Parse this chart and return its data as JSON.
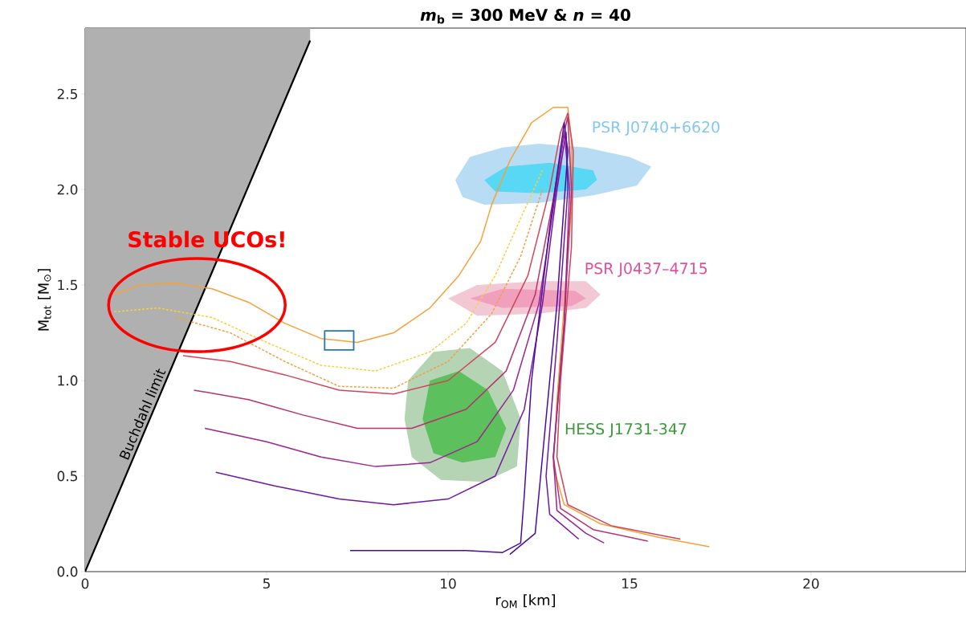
{
  "chart_data": {
    "type": "line",
    "title": "*m*$_{b}$ = 300 MeV & *n* = 40",
    "xlabel": "r$_{OM}$ [km]",
    "ylabel": "M$_{tot}$ [M$_{⊙}$]",
    "xlim": [
      0,
      24.27
    ],
    "ylim": [
      0,
      2.845
    ],
    "xticks": [
      0,
      5,
      10,
      15,
      20
    ],
    "yticks": [
      {
        "value": 0,
        "label": "0.0"
      },
      {
        "value": 0.5,
        "label": "0.5"
      },
      {
        "value": 1,
        "label": "1.0"
      },
      {
        "value": 1.5,
        "label": "1.5"
      },
      {
        "value": 2,
        "label": "2.0"
      },
      {
        "value": 2.5,
        "label": "2.5"
      }
    ],
    "series": [
      {
        "type": "area",
        "color": "#b8dcf4",
        "x": [
          10.2,
          10.6,
          11.5,
          12.5,
          13.8,
          15.0,
          15.6,
          15.2,
          14.0,
          12.5,
          11.0,
          10.4
        ],
        "values": [
          2.05,
          2.17,
          2.22,
          2.24,
          2.22,
          2.17,
          2.12,
          2.02,
          1.97,
          1.93,
          1.92,
          1.96
        ]
      },
      {
        "type": "area",
        "color": "#58d8f4",
        "x": [
          11.0,
          11.6,
          12.8,
          14.0,
          14.1,
          13.8,
          12.5,
          11.3
        ],
        "values": [
          2.05,
          2.12,
          2.14,
          2.1,
          2.05,
          2.0,
          1.98,
          1.99
        ]
      },
      {
        "type": "area",
        "color": "#f2c8d4",
        "x": [
          10.0,
          10.8,
          12.5,
          13.8,
          14.2,
          13.8,
          12.5,
          10.8
        ],
        "values": [
          1.43,
          1.5,
          1.52,
          1.52,
          1.45,
          1.38,
          1.35,
          1.34
        ]
      },
      {
        "type": "area",
        "color": "#f0a0bc",
        "x": [
          10.6,
          11.5,
          13.5,
          13.8,
          13.4,
          11.5
        ],
        "values": [
          1.43,
          1.48,
          1.47,
          1.43,
          1.39,
          1.38
        ]
      },
      {
        "type": "area",
        "color": "#b4d4b4",
        "x": [
          8.8,
          8.9,
          9.6,
          10.6,
          11.5,
          12.0,
          11.9,
          11.0,
          9.8,
          9.0
        ],
        "values": [
          0.8,
          1.0,
          1.15,
          1.17,
          1.05,
          0.8,
          0.55,
          0.47,
          0.48,
          0.6
        ]
      },
      {
        "type": "area",
        "color": "#5cc05c",
        "x": [
          9.3,
          9.5,
          10.3,
          11.1,
          11.6,
          11.3,
          10.4,
          9.6
        ],
        "values": [
          0.8,
          1.0,
          1.05,
          0.95,
          0.75,
          0.6,
          0.57,
          0.62
        ]
      },
      {
        "name": "Buchdahl limit",
        "color": "#000000",
        "x": [
          0,
          3.1,
          6.2
        ],
        "values": [
          0,
          1.39,
          2.78
        ],
        "lower": [
          0,
          1.39,
          2.78
        ],
        "upper": [
          2.845,
          2.845,
          2.845
        ]
      },
      {
        "color": "#f4a23a",
        "x": [
          0.8,
          1.5,
          2.5,
          3.5,
          4.5,
          5.5,
          6.5,
          7.5,
          8.5,
          9.5,
          10.3,
          10.9,
          11.2,
          11.7,
          12.3,
          12.9,
          13.3,
          13.4,
          13.4,
          13.2,
          13.0,
          12.9,
          13.2,
          14.2,
          15.8,
          17.2
        ],
        "values": [
          1.45,
          1.5,
          1.51,
          1.48,
          1.41,
          1.3,
          1.22,
          1.2,
          1.25,
          1.38,
          1.55,
          1.73,
          1.92,
          2.15,
          2.35,
          2.43,
          2.43,
          2.25,
          1.9,
          1.4,
          0.9,
          0.55,
          0.35,
          0.25,
          0.18,
          0.13
        ]
      },
      {
        "color": "#f5d040",
        "line_style": "dashed",
        "x": [
          0.8,
          2,
          3.5,
          5,
          6.5,
          8,
          9.5,
          10.5,
          11.3,
          12,
          12.6
        ],
        "values": [
          1.36,
          1.38,
          1.33,
          1.2,
          1.08,
          1.05,
          1.15,
          1.3,
          1.55,
          1.85,
          2.1
        ]
      },
      {
        "color": "#f0a040",
        "line_style": "dashed",
        "x": [
          2.5,
          4,
          5.5,
          7,
          8.5,
          10,
          11.2,
          12.0,
          12.6
        ],
        "values": [
          1.33,
          1.25,
          1.1,
          0.97,
          0.96,
          1.1,
          1.35,
          1.65,
          2.0
        ]
      },
      {
        "color": "#d0455a",
        "x": [
          2.7,
          4,
          5.5,
          7,
          8.5,
          10,
          11.3,
          12.2,
          12.8,
          13.1,
          13.3,
          13.45,
          13.4,
          13.1,
          13.0,
          13.3,
          14.5,
          16.4
        ],
        "values": [
          1.13,
          1.1,
          1.03,
          0.95,
          0.93,
          1.0,
          1.2,
          1.55,
          2.0,
          2.3,
          2.4,
          2.2,
          1.7,
          1.0,
          0.6,
          0.35,
          0.24,
          0.17
        ]
      },
      {
        "color": "#b83070",
        "x": [
          3.0,
          4.5,
          6,
          7.5,
          9,
          10.5,
          11.6,
          12.4,
          12.9,
          13.2,
          13.3,
          13.4,
          13.2,
          12.9,
          13.1,
          14,
          15.5
        ],
        "values": [
          0.95,
          0.9,
          0.82,
          0.75,
          0.75,
          0.85,
          1.05,
          1.45,
          1.95,
          2.3,
          2.38,
          2.0,
          1.3,
          0.6,
          0.33,
          0.22,
          0.16
        ]
      },
      {
        "color": "#9a2590",
        "x": [
          3.3,
          5,
          6.5,
          8,
          9.5,
          10.8,
          11.8,
          12.5,
          12.9,
          13.2,
          13.35,
          13.2,
          12.9,
          13.0,
          13.8,
          14.3
        ],
        "values": [
          0.75,
          0.68,
          0.6,
          0.55,
          0.57,
          0.68,
          0.95,
          1.4,
          1.9,
          2.3,
          2.0,
          1.3,
          0.6,
          0.32,
          0.2,
          0.15
        ]
      },
      {
        "color": "#7018a0",
        "x": [
          3.6,
          5.2,
          7,
          8.5,
          10,
          11.3,
          12.1,
          12.6,
          13.0,
          13.25,
          13.3,
          13.0,
          12.7,
          12.8,
          13.6
        ],
        "values": [
          0.52,
          0.45,
          0.38,
          0.35,
          0.38,
          0.5,
          0.85,
          1.4,
          2.0,
          2.3,
          2.0,
          1.2,
          0.5,
          0.3,
          0.17
        ]
      },
      {
        "color": "#4a0ca0",
        "x": [
          7.3,
          9,
          10.5,
          11.5,
          12.0,
          12.1,
          12.3,
          12.8,
          13.2,
          13.3,
          13.0,
          12.6,
          12.4,
          11.7
        ],
        "values": [
          0.11,
          0.11,
          0.11,
          0.1,
          0.15,
          0.4,
          1.0,
          1.8,
          2.35,
          2.2,
          1.4,
          0.6,
          0.2,
          0.09
        ]
      }
    ],
    "annotations": [
      "Stable UCOs!",
      "PSR J0740+6620",
      "PSR J0437–4715",
      "HESS J1731-347"
    ]
  }
}
